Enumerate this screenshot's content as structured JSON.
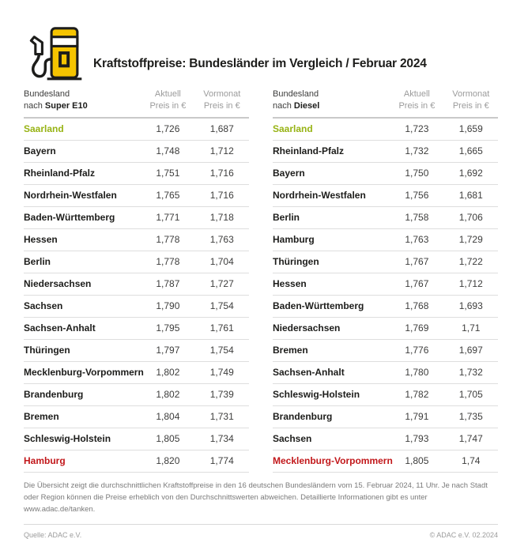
{
  "header": {
    "title": "Kraftstoffpreise: Bundesländer im Vergleich / Februar 2024"
  },
  "icons": {
    "header_icon": "fuel-pump-icon"
  },
  "colors": {
    "accent_yellow": "#F5C400",
    "cheapest_green": "#97B314",
    "most_expensive_red": "#C2181B",
    "text_dark": "#1d1d1b",
    "text_gray": "#9b9b9b"
  },
  "chart_data": [
    {
      "type": "table",
      "fuel": "Super E10",
      "header": {
        "col1_line1": "Bundesland",
        "col1_line2_prefix": "nach ",
        "col1_line2_fuel": "Super E10",
        "col2_line1": "Aktuell",
        "col2_line2": "Preis in €",
        "col3_line1": "Vormonat",
        "col3_line2": "Preis in €"
      },
      "rows": [
        {
          "name": "Saarland",
          "aktuell": "1,726",
          "vormonat": "1,687",
          "highlight": "green"
        },
        {
          "name": "Bayern",
          "aktuell": "1,748",
          "vormonat": "1,712"
        },
        {
          "name": "Rheinland-Pfalz",
          "aktuell": "1,751",
          "vormonat": "1,716"
        },
        {
          "name": "Nordrhein-Westfalen",
          "aktuell": "1,765",
          "vormonat": "1,716"
        },
        {
          "name": "Baden-Württemberg",
          "aktuell": "1,771",
          "vormonat": "1,718"
        },
        {
          "name": "Hessen",
          "aktuell": "1,778",
          "vormonat": "1,763"
        },
        {
          "name": "Berlin",
          "aktuell": "1,778",
          "vormonat": "1,704"
        },
        {
          "name": "Niedersachsen",
          "aktuell": "1,787",
          "vormonat": "1,727"
        },
        {
          "name": "Sachsen",
          "aktuell": "1,790",
          "vormonat": "1,754"
        },
        {
          "name": "Sachsen-Anhalt",
          "aktuell": "1,795",
          "vormonat": "1,761"
        },
        {
          "name": "Thüringen",
          "aktuell": "1,797",
          "vormonat": "1,754"
        },
        {
          "name": "Mecklenburg-Vorpommern",
          "aktuell": "1,802",
          "vormonat": "1,749"
        },
        {
          "name": "Brandenburg",
          "aktuell": "1,802",
          "vormonat": "1,739"
        },
        {
          "name": "Bremen",
          "aktuell": "1,804",
          "vormonat": "1,731"
        },
        {
          "name": "Schleswig-Holstein",
          "aktuell": "1,805",
          "vormonat": "1,734"
        },
        {
          "name": "Hamburg",
          "aktuell": "1,820",
          "vormonat": "1,774",
          "highlight": "red"
        }
      ]
    },
    {
      "type": "table",
      "fuel": "Diesel",
      "header": {
        "col1_line1": "Bundesland",
        "col1_line2_prefix": "nach ",
        "col1_line2_fuel": "Diesel",
        "col2_line1": "Aktuell",
        "col2_line2": "Preis in €",
        "col3_line1": "Vormonat",
        "col3_line2": "Preis in €"
      },
      "rows": [
        {
          "name": "Saarland",
          "aktuell": "1,723",
          "vormonat": "1,659",
          "highlight": "green"
        },
        {
          "name": "Rheinland-Pfalz",
          "aktuell": "1,732",
          "vormonat": "1,665"
        },
        {
          "name": "Bayern",
          "aktuell": "1,750",
          "vormonat": "1,692"
        },
        {
          "name": "Nordrhein-Westfalen",
          "aktuell": "1,756",
          "vormonat": "1,681"
        },
        {
          "name": "Berlin",
          "aktuell": "1,758",
          "vormonat": "1,706"
        },
        {
          "name": "Hamburg",
          "aktuell": "1,763",
          "vormonat": "1,729"
        },
        {
          "name": "Thüringen",
          "aktuell": "1,767",
          "vormonat": "1,722"
        },
        {
          "name": "Hessen",
          "aktuell": "1,767",
          "vormonat": "1,712"
        },
        {
          "name": "Baden-Württemberg",
          "aktuell": "1,768",
          "vormonat": "1,693"
        },
        {
          "name": "Niedersachsen",
          "aktuell": "1,769",
          "vormonat": "1,71"
        },
        {
          "name": "Bremen",
          "aktuell": "1,776",
          "vormonat": "1,697"
        },
        {
          "name": "Sachsen-Anhalt",
          "aktuell": "1,780",
          "vormonat": "1,732"
        },
        {
          "name": "Schleswig-Holstein",
          "aktuell": "1,782",
          "vormonat": "1,705"
        },
        {
          "name": "Brandenburg",
          "aktuell": "1,791",
          "vormonat": "1,735"
        },
        {
          "name": "Sachsen",
          "aktuell": "1,793",
          "vormonat": "1,747"
        },
        {
          "name": "Mecklenburg-Vorpommern",
          "aktuell": "1,805",
          "vormonat": "1,74",
          "highlight": "red"
        }
      ]
    }
  ],
  "footnote": {
    "text": "Die Übersicht zeigt die durchschnittlichen Kraftstoffpreise in den 16 deutschen Bundesländern vom 15. Februar 2024, 11 Uhr. Je nach Stadt oder Region können die Preise erheblich von den Durchschnittswerten abweichen. Detaillierte Informationen gibt es unter www.adac.de/tanken."
  },
  "footer": {
    "source": "Quelle: ADAC e.V.",
    "copyright": "© ADAC e.V. 02.2024"
  }
}
